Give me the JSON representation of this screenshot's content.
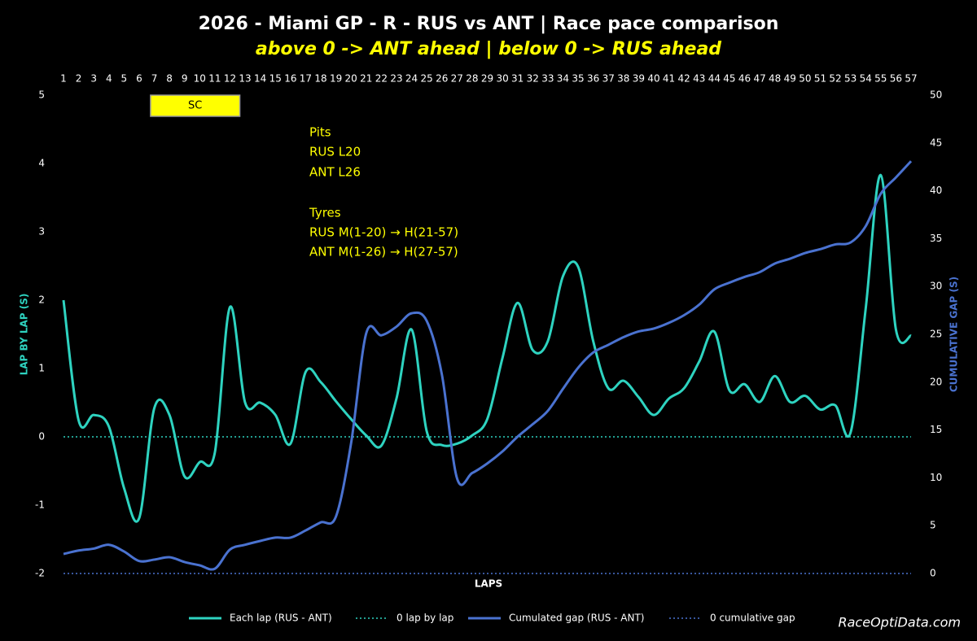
{
  "chart_data": {
    "type": "line",
    "title": "2026 - Miami GP - R - RUS vs ANT | Race pace comparison",
    "subtitle": "above 0 -> ANT ahead | below 0 -> RUS ahead",
    "x_label": "LAPS",
    "y_label": "LAP BY LAP (S)",
    "y2_label": "CUMULATIVE GAP (S)",
    "watermark": "RaceOptiData.com",
    "x": [
      1,
      2,
      3,
      4,
      5,
      6,
      7,
      8,
      9,
      10,
      11,
      12,
      13,
      14,
      15,
      16,
      17,
      18,
      19,
      20,
      21,
      22,
      23,
      24,
      25,
      26,
      27,
      28,
      29,
      30,
      31,
      32,
      33,
      34,
      35,
      36,
      37,
      38,
      39,
      40,
      41,
      42,
      43,
      44,
      45,
      46,
      47,
      48,
      49,
      50,
      51,
      52,
      53,
      54,
      55,
      56,
      57
    ],
    "xlim": [
      1,
      57
    ],
    "ylim": [
      -2,
      5
    ],
    "yticks": [
      -2,
      -1,
      0,
      1,
      2,
      3,
      4,
      5
    ],
    "y2lim": [
      0,
      50
    ],
    "y2ticks": [
      0,
      5,
      10,
      15,
      20,
      25,
      30,
      35,
      40,
      45,
      50
    ],
    "safety_car": {
      "label": "SC",
      "from": 6.75,
      "to": 12.65
    },
    "notes": [
      "Pits",
      "RUS L20",
      "ANT L26",
      "Tyres",
      "RUS M(1-20) → H(21-57)",
      "ANT M(1-26) → H(27-57)"
    ],
    "series": [
      {
        "name": "Each lap (RUS - ANT)",
        "color": "#2ed3c0",
        "dashed": false,
        "values": [
          2.0,
          0.24,
          0.32,
          0.15,
          -0.75,
          -1.19,
          0.42,
          0.32,
          -0.58,
          -0.37,
          -0.23,
          1.9,
          0.5,
          0.5,
          0.32,
          -0.1,
          0.95,
          0.8,
          0.52,
          0.26,
          0.02,
          -0.13,
          0.56,
          1.57,
          0.08,
          -0.12,
          -0.1,
          0.02,
          0.26,
          1.15,
          1.96,
          1.27,
          1.4,
          2.35,
          2.49,
          1.4,
          0.71,
          0.82,
          0.58,
          0.32,
          0.56,
          0.71,
          1.1,
          1.54,
          0.68,
          0.77,
          0.51,
          0.89,
          0.51,
          0.6,
          0.4,
          0.46,
          0.06,
          1.87,
          3.83,
          1.57,
          1.48
        ]
      },
      {
        "name": "0 lap by lap",
        "color": "#2ed3c0",
        "dashed": true,
        "values": [
          0,
          0,
          0,
          0,
          0,
          0,
          0,
          0,
          0,
          0,
          0,
          0,
          0,
          0,
          0,
          0,
          0,
          0,
          0,
          0,
          0,
          0,
          0,
          0,
          0,
          0,
          0,
          0,
          0,
          0,
          0,
          0,
          0,
          0,
          0,
          0,
          0,
          0,
          0,
          0,
          0,
          0,
          0,
          0,
          0,
          0,
          0,
          0,
          0,
          0,
          0,
          0,
          0,
          0,
          0,
          0,
          0
        ]
      },
      {
        "name": "Cumulated gap (RUS - ANT)",
        "color": "#4a72d0",
        "dashed": false,
        "axis": "y2",
        "values": [
          2.04,
          2.4,
          2.6,
          3.0,
          2.3,
          1.3,
          1.45,
          1.7,
          1.2,
          0.85,
          0.5,
          2.5,
          3.0,
          3.4,
          3.75,
          3.75,
          4.5,
          5.35,
          5.95,
          13.6,
          25.1,
          24.9,
          25.8,
          27.2,
          26.4,
          20.8,
          9.95,
          10.5,
          11.5,
          12.75,
          14.3,
          15.6,
          17.0,
          19.3,
          21.5,
          23.1,
          23.9,
          24.7,
          25.3,
          25.6,
          26.2,
          27.0,
          28.1,
          29.7,
          30.4,
          31.0,
          31.5,
          32.4,
          32.9,
          33.5,
          33.9,
          34.4,
          34.6,
          36.3,
          39.7,
          41.4,
          43.1
        ]
      },
      {
        "name": "0 cumulative gap",
        "color": "#4a72d0",
        "dashed": true,
        "axis": "y2",
        "values": [
          0,
          0,
          0,
          0,
          0,
          0,
          0,
          0,
          0,
          0,
          0,
          0,
          0,
          0,
          0,
          0,
          0,
          0,
          0,
          0,
          0,
          0,
          0,
          0,
          0,
          0,
          0,
          0,
          0,
          0,
          0,
          0,
          0,
          0,
          0,
          0,
          0,
          0,
          0,
          0,
          0,
          0,
          0,
          0,
          0,
          0,
          0,
          0,
          0,
          0,
          0,
          0,
          0,
          0,
          0,
          0,
          0
        ]
      }
    ]
  }
}
